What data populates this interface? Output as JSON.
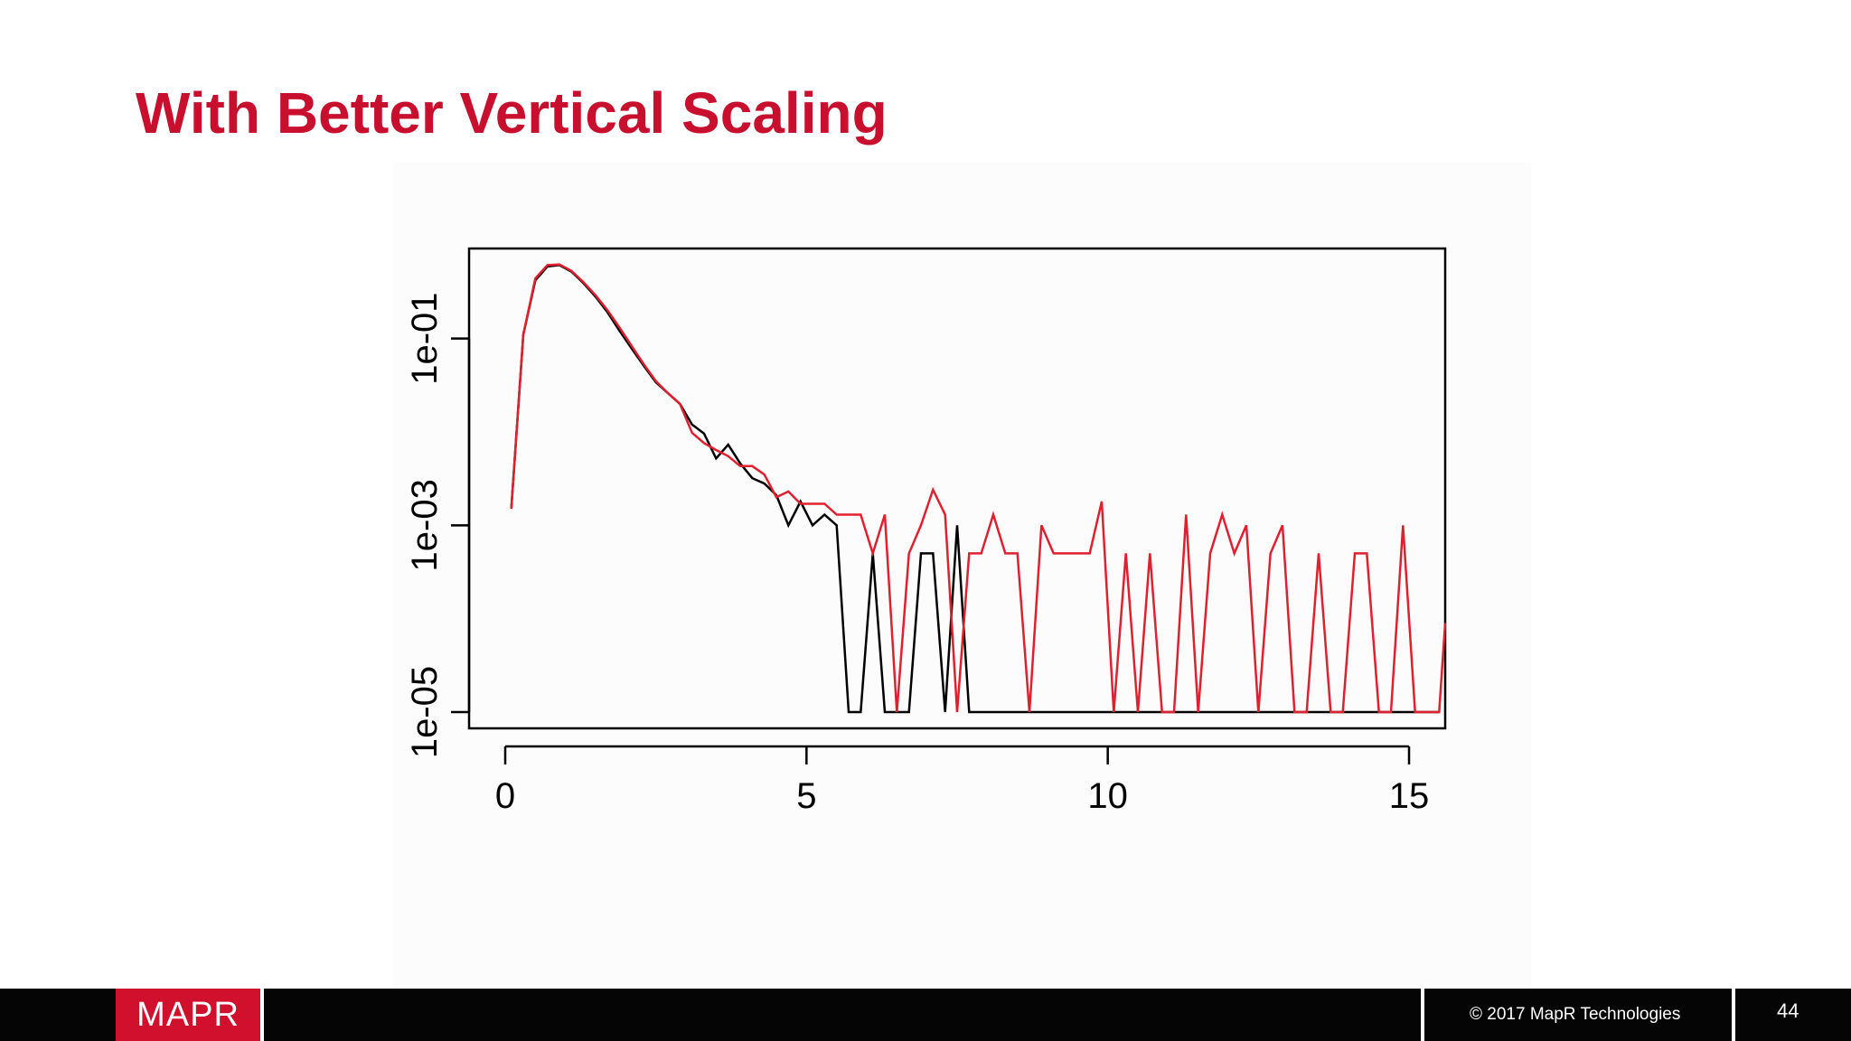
{
  "slide": {
    "title": "With Better Vertical Scaling"
  },
  "footer": {
    "logo": "MAPR",
    "copyright": "© 2017 MapR Technologies",
    "page_number": "44"
  },
  "chart_data": {
    "type": "line",
    "title": "",
    "xlabel": "",
    "ylabel": "",
    "y_scale": "log",
    "xlim": [
      -0.6,
      15.6
    ],
    "ylim": [
      6.7e-06,
      0.92
    ],
    "x_ticks": [
      0,
      5,
      10,
      15
    ],
    "x_tick_labels": [
      "0",
      "5",
      "10",
      "15"
    ],
    "y_ticks": [
      1e-05,
      0.001,
      0.1
    ],
    "y_tick_labels": [
      "1e-05",
      "1e-03",
      "1e-01"
    ],
    "grid": false,
    "legend": "none",
    "series": [
      {
        "color": "#000000",
        "x": [
          0.1,
          0.3,
          0.5,
          0.7,
          0.9,
          1.1,
          1.3,
          1.5,
          1.7,
          1.9,
          2.1,
          2.3,
          2.5,
          2.7,
          2.9,
          3.1,
          3.3,
          3.5,
          3.7,
          3.9,
          4.1,
          4.3,
          4.5,
          4.7,
          4.9,
          5.1,
          5.3,
          5.5,
          5.7,
          5.9,
          6.1,
          6.3,
          6.5,
          6.7,
          6.9,
          7.1,
          7.3,
          7.5,
          7.7,
          7.9,
          8.1,
          8.3,
          8.5,
          8.7,
          8.9,
          9.1,
          9.3,
          9.5,
          9.7,
          9.9,
          10.1,
          10.3,
          10.5,
          10.7,
          10.9,
          11.1,
          11.3,
          11.5,
          11.7,
          11.9,
          12.1,
          12.3,
          12.5,
          12.7,
          12.9,
          13.1,
          13.3,
          13.5,
          13.7,
          13.9,
          14.1,
          14.3,
          14.5,
          14.7,
          14.9,
          15.1,
          15.3,
          15.5
        ],
        "y": [
          0.0015,
          0.11,
          0.42,
          0.59,
          0.61,
          0.52,
          0.39,
          0.28,
          0.19,
          0.12,
          0.078,
          0.051,
          0.034,
          0.026,
          0.02,
          0.012,
          0.0096,
          0.0052,
          0.0073,
          0.0046,
          0.0032,
          0.0028,
          0.0021,
          0.001,
          0.0018,
          0.001,
          0.0013,
          0.001,
          1e-05,
          1e-05,
          0.0005,
          1e-05,
          1e-05,
          1e-05,
          0.0005,
          0.0005,
          1e-05,
          0.001,
          1e-05,
          1e-05,
          1e-05,
          1e-05,
          1e-05,
          1e-05,
          1e-05,
          1e-05,
          1e-05,
          1e-05,
          1e-05,
          1e-05,
          1e-05,
          1e-05,
          1e-05,
          1e-05,
          1e-05,
          1e-05,
          1e-05,
          1e-05,
          1e-05,
          1e-05,
          1e-05,
          1e-05,
          1e-05,
          1e-05,
          1e-05,
          1e-05,
          1e-05,
          1e-05,
          1e-05,
          1e-05,
          1e-05,
          1e-05,
          1e-05,
          1e-05,
          1e-05,
          1e-05,
          1e-05,
          1e-05
        ]
      },
      {
        "color": "#e0202e",
        "x": [
          0.1,
          0.3,
          0.5,
          0.7,
          0.9,
          1.1,
          1.3,
          1.5,
          1.7,
          1.9,
          2.1,
          2.3,
          2.5,
          2.7,
          2.9,
          3.1,
          3.3,
          3.5,
          3.7,
          3.9,
          4.1,
          4.3,
          4.5,
          4.7,
          4.9,
          5.1,
          5.3,
          5.5,
          5.7,
          5.9,
          6.1,
          6.3,
          6.5,
          6.7,
          6.9,
          7.1,
          7.3,
          7.5,
          7.7,
          7.9,
          8.1,
          8.3,
          8.5,
          8.7,
          8.9,
          9.1,
          9.3,
          9.5,
          9.7,
          9.9,
          10.1,
          10.3,
          10.5,
          10.7,
          10.9,
          11.1,
          11.3,
          11.5,
          11.7,
          11.9,
          12.1,
          12.3,
          12.5,
          12.7,
          12.9,
          13.1,
          13.3,
          13.5,
          13.7,
          13.9,
          14.1,
          14.3,
          14.5,
          14.7,
          14.9,
          15.1,
          15.3,
          15.5,
          15.6
        ],
        "y": [
          0.0015,
          0.11,
          0.44,
          0.61,
          0.62,
          0.53,
          0.4,
          0.29,
          0.2,
          0.13,
          0.083,
          0.053,
          0.035,
          0.026,
          0.02,
          0.0098,
          0.0076,
          0.0064,
          0.0055,
          0.0043,
          0.0043,
          0.0035,
          0.002,
          0.0023,
          0.0017,
          0.0017,
          0.0017,
          0.0013,
          0.0013,
          0.0013,
          0.0005,
          0.0013,
          1e-05,
          0.0005,
          0.001,
          0.0024,
          0.0013,
          1e-05,
          0.0005,
          0.0005,
          0.0013,
          0.0005,
          0.0005,
          1e-05,
          0.001,
          0.0005,
          0.0005,
          0.0005,
          0.0005,
          0.0018,
          1e-05,
          0.0005,
          1e-05,
          0.0005,
          1e-05,
          1e-05,
          0.0013,
          1e-05,
          0.0005,
          0.0013,
          0.0005,
          0.001,
          1e-05,
          0.0005,
          0.001,
          1e-05,
          1e-05,
          0.0005,
          1e-05,
          1e-05,
          0.0005,
          0.0005,
          1e-05,
          1e-05,
          0.001,
          1e-05,
          1e-05,
          1e-05,
          9e-05
        ]
      }
    ]
  }
}
